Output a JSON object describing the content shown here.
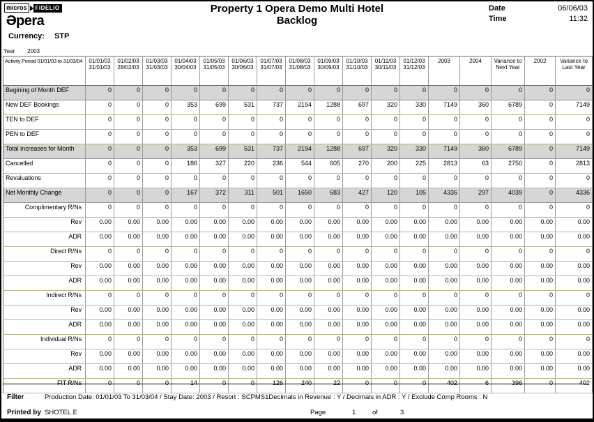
{
  "branding": {
    "micros_label": "micros",
    "fidelio_label": "FIDELIO",
    "opera_e": "Ə",
    "opera_rest": "pera"
  },
  "header": {
    "title_line1": "Property 1 Opera Demo Multi Hotel",
    "title_line2": "Backlog",
    "date_label": "Date",
    "date_value": "06/06/03",
    "time_label": "Time",
    "time_value": "11:32",
    "currency_label": "Currency:",
    "currency_value": "STP",
    "year_label": "Year",
    "year_value": "2003"
  },
  "table": {
    "corner_label": "Activity Period 01/01/03 to 31/03/04",
    "columns": [
      {
        "line1": "01/01/03",
        "line2": "31/01/03"
      },
      {
        "line1": "01/02/03",
        "line2": "28/02/03"
      },
      {
        "line1": "01/03/03",
        "line2": "31/03/03"
      },
      {
        "line1": "01/04/03",
        "line2": "30/04/03"
      },
      {
        "line1": "01/05/03",
        "line2": "31/05/03"
      },
      {
        "line1": "01/06/03",
        "line2": "30/06/03"
      },
      {
        "line1": "01/07/03",
        "line2": "31/07/03"
      },
      {
        "line1": "01/08/03",
        "line2": "31/08/03"
      },
      {
        "line1": "01/09/03",
        "line2": "30/09/03"
      },
      {
        "line1": "01/10/03",
        "line2": "31/10/03"
      },
      {
        "line1": "01/11/03",
        "line2": "30/11/03"
      },
      {
        "line1": "01/12/03",
        "line2": "31/12/03"
      },
      {
        "line1": "2003",
        "line2": ""
      },
      {
        "line1": "2004",
        "line2": ""
      },
      {
        "line1": "Variance to",
        "line2": "Next Year"
      },
      {
        "line1": "2002",
        "line2": ""
      },
      {
        "line1": "Variance to",
        "line2": "Last Year"
      }
    ],
    "rows": [
      {
        "label": "Begining of Month  DEF",
        "align": "left",
        "shaded": true,
        "values": [
          "0",
          "0",
          "0",
          "0",
          "0",
          "0",
          "0",
          "0",
          "0",
          "0",
          "0",
          "0",
          "0",
          "0",
          "0",
          "0",
          "0"
        ]
      },
      {
        "label": "New DEF Bookings",
        "align": "left",
        "shaded": false,
        "values": [
          "0",
          "0",
          "0",
          "353",
          "699",
          "531",
          "737",
          "2194",
          "1288",
          "697",
          "320",
          "330",
          "7149",
          "360",
          "6789",
          "0",
          "7149"
        ]
      },
      {
        "label": "TEN to DEF",
        "align": "left",
        "shaded": false,
        "values": [
          "0",
          "0",
          "0",
          "0",
          "0",
          "0",
          "0",
          "0",
          "0",
          "0",
          "0",
          "0",
          "0",
          "0",
          "0",
          "0",
          "0"
        ]
      },
      {
        "label": "PEN to DEF",
        "align": "left",
        "shaded": false,
        "values": [
          "0",
          "0",
          "0",
          "0",
          "0",
          "0",
          "0",
          "0",
          "0",
          "0",
          "0",
          "0",
          "0",
          "0",
          "0",
          "0",
          "0"
        ]
      },
      {
        "label": "Total Increases for Month",
        "align": "left",
        "shaded": true,
        "values": [
          "0",
          "0",
          "0",
          "353",
          "699",
          "531",
          "737",
          "2194",
          "1288",
          "697",
          "320",
          "330",
          "7149",
          "360",
          "6789",
          "0",
          "7149"
        ]
      },
      {
        "label": "Cancelled",
        "align": "left",
        "shaded": false,
        "values": [
          "0",
          "0",
          "0",
          "186",
          "327",
          "220",
          "236",
          "544",
          "605",
          "270",
          "200",
          "225",
          "2813",
          "63",
          "2750",
          "0",
          "2813"
        ]
      },
      {
        "label": "Revaluations",
        "align": "left",
        "shaded": false,
        "values": [
          "0",
          "0",
          "0",
          "0",
          "0",
          "0",
          "0",
          "0",
          "0",
          "0",
          "0",
          "0",
          "0",
          "0",
          "0",
          "0",
          "0"
        ]
      },
      {
        "label": "Net Monthly Change",
        "align": "left",
        "shaded": true,
        "values": [
          "0",
          "0",
          "0",
          "167",
          "372",
          "311",
          "501",
          "1650",
          "683",
          "427",
          "120",
          "105",
          "4336",
          "297",
          "4039",
          "0",
          "4336"
        ]
      },
      {
        "label": "Complimentary R/Ns",
        "align": "right",
        "shaded": false,
        "values": [
          "0",
          "0",
          "0",
          "0",
          "0",
          "0",
          "0",
          "0",
          "0",
          "0",
          "0",
          "0",
          "0",
          "0",
          "0",
          "0",
          "0"
        ]
      },
      {
        "label": "Rev",
        "align": "right",
        "shaded": false,
        "values": [
          "0.00",
          "0.00",
          "0.00",
          "0.00",
          "0.00",
          "0.00",
          "0.00",
          "0.00",
          "0.00",
          "0.00",
          "0.00",
          "0.00",
          "0.00",
          "0.00",
          "0.00",
          "0.00",
          "0.00"
        ]
      },
      {
        "label": "ADR",
        "align": "right",
        "shaded": false,
        "values": [
          "0.00",
          "0.00",
          "0.00",
          "0.00",
          "0.00",
          "0.00",
          "0.00",
          "0.00",
          "0.00",
          "0.00",
          "0.00",
          "0.00",
          "0.00",
          "0.00",
          "0.00",
          "0.00",
          "0.00"
        ]
      },
      {
        "label": "Direct R/Ns",
        "align": "right",
        "shaded": false,
        "values": [
          "0",
          "0",
          "0",
          "0",
          "0",
          "0",
          "0",
          "0",
          "0",
          "0",
          "0",
          "0",
          "0",
          "0",
          "0",
          "0",
          "0"
        ]
      },
      {
        "label": "Rev",
        "align": "right",
        "shaded": false,
        "values": [
          "0.00",
          "0.00",
          "0.00",
          "0.00",
          "0.00",
          "0.00",
          "0.00",
          "0.00",
          "0.00",
          "0.00",
          "0.00",
          "0.00",
          "0.00",
          "0.00",
          "0.00",
          "0.00",
          "0.00"
        ]
      },
      {
        "label": "ADR",
        "align": "right",
        "shaded": false,
        "values": [
          "0.00",
          "0.00",
          "0.00",
          "0.00",
          "0.00",
          "0.00",
          "0.00",
          "0.00",
          "0.00",
          "0.00",
          "0.00",
          "0.00",
          "0.00",
          "0.00",
          "0.00",
          "0.00",
          "0.00"
        ]
      },
      {
        "label": "Indirect R/Ns",
        "align": "right",
        "shaded": false,
        "values": [
          "0",
          "0",
          "0",
          "0",
          "0",
          "0",
          "0",
          "0",
          "0",
          "0",
          "0",
          "0",
          "0",
          "0",
          "0",
          "0",
          "0"
        ]
      },
      {
        "label": "Rev",
        "align": "right",
        "shaded": false,
        "values": [
          "0.00",
          "0.00",
          "0.00",
          "0.00",
          "0.00",
          "0.00",
          "0.00",
          "0.00",
          "0.00",
          "0.00",
          "0.00",
          "0.00",
          "0.00",
          "0.00",
          "0.00",
          "0.00",
          "0.00"
        ]
      },
      {
        "label": "ADR",
        "align": "right",
        "shaded": false,
        "values": [
          "0.00",
          "0.00",
          "0.00",
          "0.00",
          "0.00",
          "0.00",
          "0.00",
          "0.00",
          "0.00",
          "0.00",
          "0.00",
          "0.00",
          "0.00",
          "0.00",
          "0.00",
          "0.00",
          "0.00"
        ]
      },
      {
        "label": "Individual R/Ns",
        "align": "right",
        "shaded": false,
        "values": [
          "0",
          "0",
          "0",
          "0",
          "0",
          "0",
          "0",
          "0",
          "0",
          "0",
          "0",
          "0",
          "0",
          "0",
          "0",
          "0",
          "0"
        ]
      },
      {
        "label": "Rev",
        "align": "right",
        "shaded": false,
        "values": [
          "0.00",
          "0.00",
          "0.00",
          "0.00",
          "0.00",
          "0.00",
          "0.00",
          "0.00",
          "0.00",
          "0.00",
          "0.00",
          "0.00",
          "0.00",
          "0.00",
          "0.00",
          "0.00",
          "0.00"
        ]
      },
      {
        "label": "ADR",
        "align": "right",
        "shaded": false,
        "values": [
          "0.00",
          "0.00",
          "0.00",
          "0.00",
          "0.00",
          "0.00",
          "0.00",
          "0.00",
          "0.00",
          "0.00",
          "0.00",
          "0.00",
          "0.00",
          "0.00",
          "0.00",
          "0.00",
          "0.00"
        ]
      },
      {
        "label": "FIT R/Ns",
        "align": "right",
        "shaded": false,
        "values": [
          "0",
          "0",
          "0",
          "14",
          "0",
          "0",
          "126",
          "240",
          "22",
          "0",
          "0",
          "0",
          "402",
          "6",
          "396",
          "0",
          "402"
        ]
      }
    ]
  },
  "footer": {
    "filter_label": "Filter",
    "filter_value": "Production Date: 01/01/03 To 31/03/04 / Stay Date:  2003 / Resort : SCPMS1Decimals in Revenue : Y / Decimals in ADR : Y / Exclude Comp Rooms : N",
    "printed_by_label": "Printed by",
    "printed_by_value": "SHOTEL.E",
    "page_label": "Page",
    "page_number": "1",
    "of_label": "of",
    "page_total": "3"
  }
}
